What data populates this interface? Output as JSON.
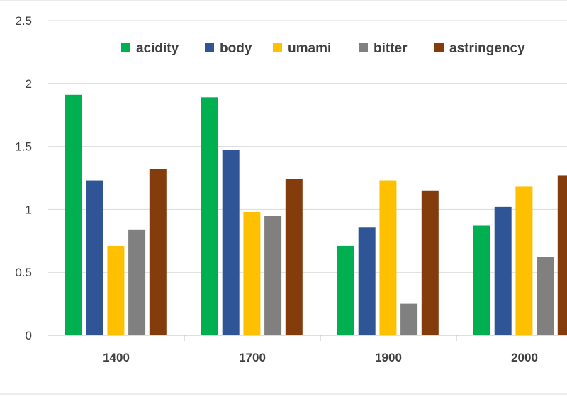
{
  "chart_data": {
    "type": "bar",
    "title": "",
    "xlabel": "",
    "ylabel": "",
    "categories": [
      "1400",
      "1700",
      "1900",
      "2000"
    ],
    "series": [
      {
        "name": "acidity",
        "color": "#00b050",
        "values": [
          1.91,
          1.89,
          0.71,
          0.87
        ]
      },
      {
        "name": "body",
        "color": "#2f5597",
        "values": [
          1.23,
          1.47,
          0.86,
          1.02
        ]
      },
      {
        "name": "umami",
        "color": "#ffc000",
        "values": [
          0.71,
          0.98,
          1.23,
          1.18
        ]
      },
      {
        "name": "bitter",
        "color": "#808080",
        "values": [
          0.84,
          0.95,
          0.25,
          0.62
        ]
      },
      {
        "name": "astringency",
        "color": "#843c0c",
        "values": [
          1.32,
          1.24,
          1.15,
          1.27
        ]
      }
    ],
    "ylim": [
      0,
      2.5
    ],
    "yticks": [
      "0",
      "0.5",
      "1",
      "1.5",
      "2",
      "2.5"
    ],
    "grid": true,
    "legend_position": "top"
  }
}
